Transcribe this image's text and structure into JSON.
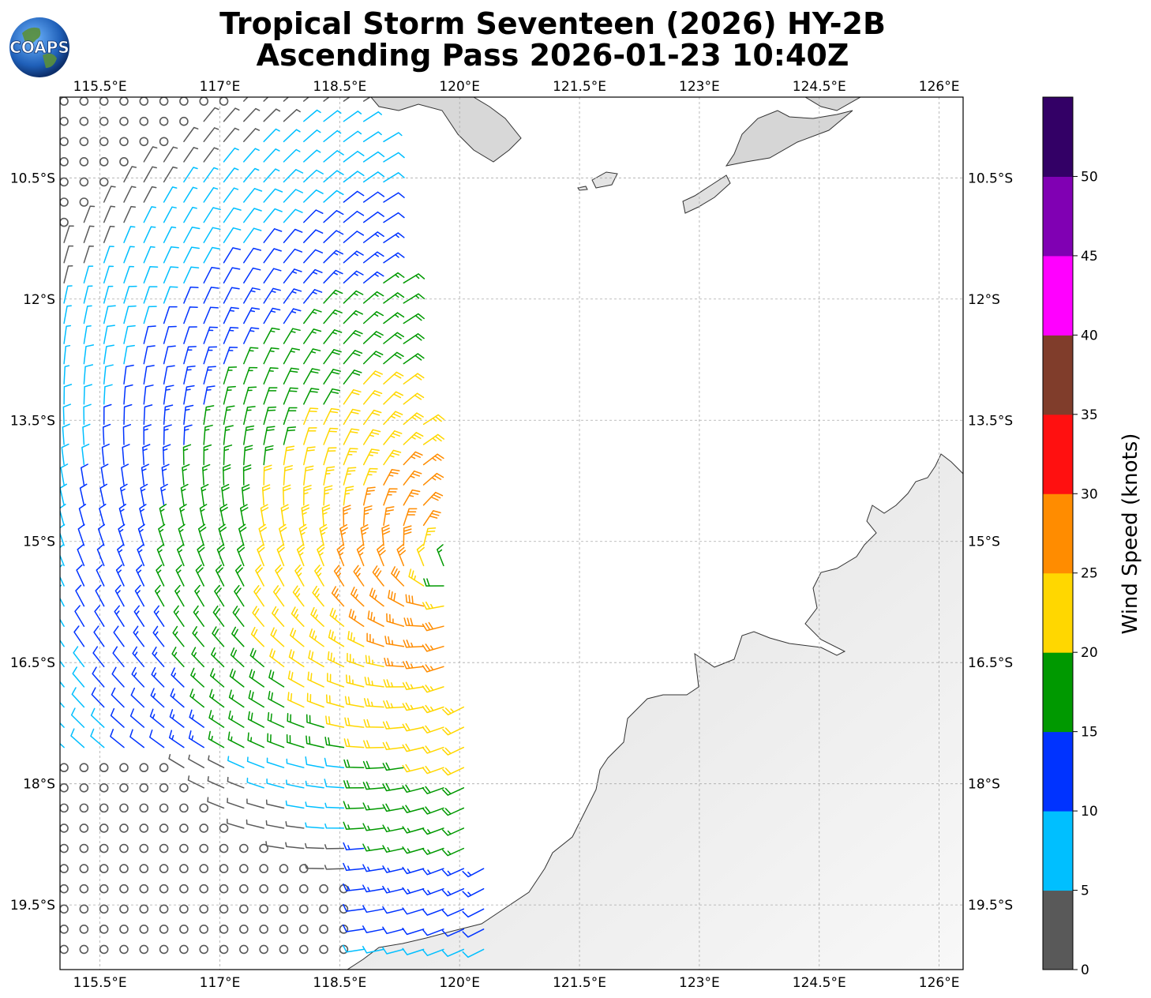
{
  "header": {
    "line1": "Tropical Storm Seventeen (2026) HY-2B",
    "line2": "Ascending Pass 2026-01-23 10:40Z",
    "logo_text": "COAPS"
  },
  "map": {
    "lon_range": [
      115.0,
      126.3
    ],
    "lat_range": [
      -9.5,
      -20.3
    ],
    "lon_ticks": [
      "115.5°E",
      "117°E",
      "118.5°E",
      "120°E",
      "121.5°E",
      "123°E",
      "124.5°E",
      "126°E"
    ],
    "lon_values": [
      115.5,
      117,
      118.5,
      120,
      121.5,
      123,
      124.5,
      126
    ],
    "lat_ticks": [
      "10.5°S",
      "12°S",
      "13.5°S",
      "15°S",
      "16.5°S",
      "18°S",
      "19.5°S"
    ],
    "lat_values": [
      -10.5,
      -12,
      -13.5,
      -15,
      -16.5,
      -18,
      -19.5
    ],
    "storm_center": {
      "lon": 119.9,
      "lat": -15.3
    },
    "grid": true
  },
  "colorbar": {
    "label": "Wind Speed (knots)",
    "ticks": [
      "0",
      "5",
      "10",
      "15",
      "20",
      "25",
      "30",
      "35",
      "40",
      "45",
      "50"
    ],
    "bins": [
      {
        "min": 0,
        "max": 5,
        "color": "#595959"
      },
      {
        "min": 5,
        "max": 10,
        "color": "#00bfff"
      },
      {
        "min": 10,
        "max": 15,
        "color": "#0033ff"
      },
      {
        "min": 15,
        "max": 20,
        "color": "#009900"
      },
      {
        "min": 20,
        "max": 25,
        "color": "#ffd700"
      },
      {
        "min": 25,
        "max": 30,
        "color": "#ff8c00"
      },
      {
        "min": 30,
        "max": 35,
        "color": "#ff1010"
      },
      {
        "min": 35,
        "max": 40,
        "color": "#803d2b"
      },
      {
        "min": 40,
        "max": 45,
        "color": "#ff00ff"
      },
      {
        "min": 45,
        "max": 50,
        "color": "#8000b3"
      },
      {
        "min": 50,
        "max": 55,
        "color": "#330066"
      }
    ]
  }
}
